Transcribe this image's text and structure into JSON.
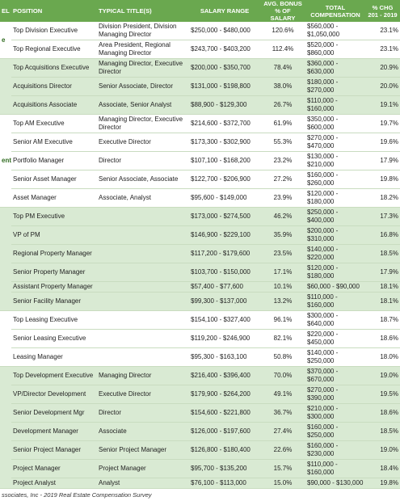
{
  "table": {
    "header": [
      "EL",
      "POSITION",
      "TYPICAL TITLE(S)",
      "SALARY RANGE",
      "AVG. BONUS % OF SALARY",
      "TOTAL COMPENSATION",
      "% CHG 201 - 2019"
    ],
    "groups": [
      {
        "level": "e",
        "rows": [
          {
            "position": "Top Division Executive",
            "titles": "Division President, Division Managing Director",
            "salary": "$250,000 - $480,000",
            "bonus": "120.6%",
            "total": "$560,000 - $1,050,000",
            "change": "23.1%"
          },
          {
            "position": "Top Regional Executive",
            "titles": "Area President, Regional Managing Director",
            "salary": "$243,700 - $403,200",
            "bonus": "112.4%",
            "total": "$520,000 - $860,000",
            "change": "23.1%"
          }
        ]
      },
      {
        "rows": [
          {
            "position": "Top Acquisitions Executive",
            "titles": "Managing Director, Executive Director",
            "salary": "$200,000 - $350,700",
            "bonus": "78.4%",
            "total": "$360,000 - $630,000",
            "change": "20.9%"
          },
          {
            "position": "Acquisitions Director",
            "titles": "Senior Associate, Director",
            "salary": "$131,000 - $198,800",
            "bonus": "38.0%",
            "total": "$180,000 - $270,000",
            "change": "20.0%"
          },
          {
            "position": "Acquisitions Associate",
            "titles": "Associate, Senior Analyst",
            "salary": "$88,900 - $129,300",
            "bonus": "26.7%",
            "total": "$110,000 - $160,000",
            "change": "19.1%"
          }
        ]
      },
      {
        "level": "ent",
        "rows": [
          {
            "position": "Top AM Executive",
            "titles": "Managing Director, Executive Director",
            "salary": "$214,600 - $372,700",
            "bonus": "61.9%",
            "total": "$350,000 - $600,000",
            "change": "19.7%"
          },
          {
            "position": "Senior AM Executive",
            "titles": "Executive Director",
            "salary": "$173,300 - $302,900",
            "bonus": "55.3%",
            "total": "$270,000 - $470,000",
            "change": "19.6%"
          },
          {
            "position": "Portfolio Manager",
            "titles": "Director",
            "salary": "$107,100 - $168,200",
            "bonus": "23.2%",
            "total": "$130,000 - $210,000",
            "change": "17.9%"
          },
          {
            "position": "Senior Asset Manager",
            "titles": "Senior Associate, Associate",
            "salary": "$122,700 - $206,900",
            "bonus": "27.2%",
            "total": "$160,000 - $260,000",
            "change": "19.8%"
          },
          {
            "position": "Asset Manager",
            "titles": "Associate, Analyst",
            "salary": "$95,600 - $149,000",
            "bonus": "23.9%",
            "total": "$120,000 - $180,000",
            "change": "18.2%"
          }
        ]
      },
      {
        "rows": [
          {
            "position": "Top PM Executive",
            "salary": "$173,000 - $274,500",
            "bonus": "46.2%",
            "total": "$250,000 - $400,000",
            "change": "17.3%"
          },
          {
            "position": "VP of PM",
            "salary": "$146,900 - $229,100",
            "bonus": "35.9%",
            "total": "$200,000 - $310,000",
            "change": "16.8%"
          },
          {
            "position": "Regional Property Manager",
            "salary": "$117,200 - $179,600",
            "bonus": "23.5%",
            "total": "$140,000 - $220,000",
            "change": "18.5%"
          },
          {
            "position": "Senior Property Manager",
            "salary": "$103,700 - $150,000",
            "bonus": "17.1%",
            "total": "$120,000 - $180,000",
            "change": "17.9%"
          },
          {
            "position": "Assistant Property Manager",
            "salary": "$57,400 - $77,600",
            "bonus": "10.1%",
            "total": "$60,000 - $90,000",
            "change": "18.1%"
          },
          {
            "position": "Senior Facility Manager",
            "salary": "$99,300 - $137,000",
            "bonus": "13.2%",
            "total": "$110,000 - $160,000",
            "change": "18.1%"
          }
        ]
      },
      {
        "rows": [
          {
            "position": "Top Leasing Executive",
            "salary": "$154,100 - $327,400",
            "bonus": "96.1%",
            "total": "$300,000 - $640,000",
            "change": "18.7%"
          },
          {
            "position": "Senior Leasing Executive",
            "salary": "$119,200 - $246,900",
            "bonus": "82.1%",
            "total": "$220,000 - $450,000",
            "change": "18.6%"
          },
          {
            "position": "Leasing Manager",
            "salary": "$95,300 - $163,100",
            "bonus": "50.8%",
            "total": "$140,000 - $250,000",
            "change": "18.0%"
          }
        ]
      },
      {
        "rows": [
          {
            "position": "Top Development Executive",
            "titles": "Managing Director",
            "salary": "$216,400 - $396,400",
            "bonus": "70.0%",
            "total": "$370,000 - $670,000",
            "change": "19.0%"
          },
          {
            "position": "VP/Director Development",
            "titles": "Executive Director",
            "salary": "$179,900 - $264,200",
            "bonus": "49.1%",
            "total": "$270,000 - $390,000",
            "change": "19.5%"
          },
          {
            "position": "Senior Development Mgr",
            "titles": "Director",
            "salary": "$154,600 - $221,800",
            "bonus": "36.7%",
            "total": "$210,000 - $300,000",
            "change": "18.6%"
          },
          {
            "position": "Development Manager",
            "titles": "Associate",
            "salary": "$126,000 - $197,600",
            "bonus": "27.4%",
            "total": "$160,000 - $250,000",
            "change": "18.5%"
          },
          {
            "position": "Senior Project Manager",
            "titles": "Senior Project Manager",
            "salary": "$126,800 - $180,400",
            "bonus": "22.6%",
            "total": "$160,000 - $230,000",
            "change": "19.0%"
          },
          {
            "position": "Project Manager",
            "titles": "Project Manager",
            "salary": "$95,700 - $135,200",
            "bonus": "15.7%",
            "total": "$110,000 - $160,000",
            "change": "18.4%"
          },
          {
            "position": "Project Analyst",
            "titles": "Analyst",
            "salary": "$76,100 - $113,000",
            "bonus": "15.0%",
            "total": "$90,000 - $130,000",
            "change": "19.8%"
          }
        ]
      }
    ],
    "footer": "ssociates, Inc - 2019 Real Estate Compensation Survey"
  }
}
